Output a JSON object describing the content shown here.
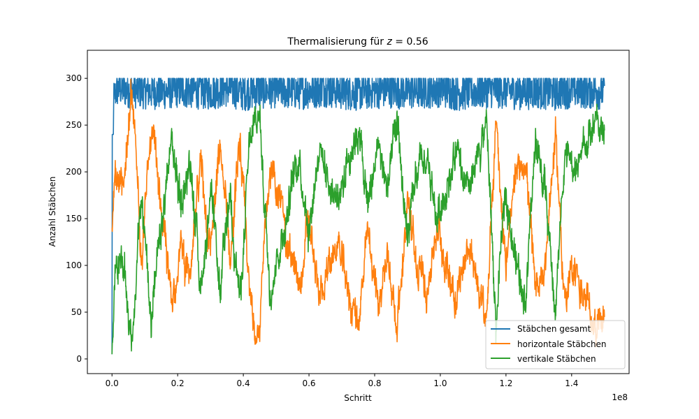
{
  "chart_data": {
    "type": "line",
    "title": "Thermalisierung für z = 0.56",
    "title_prefix": "Thermalisierung für ",
    "title_var": "z",
    "title_suffix": " = 0.56",
    "xlabel": "Schritt",
    "ylabel": "Anzahl Stäbchen",
    "x_offset_text": "1e8",
    "xlim": [
      -0.075,
      1.575
    ],
    "ylim": [
      -15.7,
      330
    ],
    "x_ticks": [
      0.0,
      0.2,
      0.4,
      0.6,
      0.8,
      1.0,
      1.2,
      1.4
    ],
    "x_tick_labels": [
      "0.0",
      "0.2",
      "0.4",
      "0.6",
      "0.8",
      "1.0",
      "1.2",
      "1.4"
    ],
    "y_ticks": [
      0,
      50,
      100,
      150,
      200,
      250,
      300
    ],
    "y_tick_labels": [
      "0",
      "50",
      "100",
      "150",
      "200",
      "250",
      "300"
    ],
    "grid": false,
    "legend_position": "lower right",
    "series": [
      {
        "name": "Stäbchen gesamt",
        "color": "#1f77b4",
        "x": [
          0.0,
          0.005,
          0.02,
          0.05,
          0.1,
          0.15,
          0.2,
          0.25,
          0.3,
          0.35,
          0.4,
          0.45,
          0.5,
          0.55,
          0.6,
          0.65,
          0.7,
          0.75,
          0.8,
          0.85,
          0.9,
          0.95,
          1.0,
          1.05,
          1.1,
          1.15,
          1.2,
          1.25,
          1.3,
          1.35,
          1.4,
          1.45,
          1.5
        ],
        "y": [
          0,
          280,
          290,
          288,
          287,
          286,
          289,
          288,
          287,
          290,
          286,
          288,
          289,
          287,
          288,
          290,
          287,
          286,
          288,
          289,
          287,
          288,
          290,
          286,
          287,
          289,
          288,
          287,
          288,
          286,
          289,
          288,
          287
        ],
        "band_low": [
          0,
          265,
          270,
          268,
          267,
          266,
          268,
          267,
          266,
          269,
          265,
          267,
          268,
          266,
          267,
          269,
          266,
          265,
          267,
          268,
          266,
          267,
          269,
          265,
          266,
          268,
          267,
          266,
          267,
          265,
          268,
          267,
          266
        ],
        "band_high": [
          0,
          298,
          308,
          307,
          306,
          305,
          309,
          308,
          307,
          310,
          306,
          308,
          309,
          307,
          308,
          312,
          307,
          306,
          308,
          309,
          307,
          308,
          312,
          306,
          307,
          309,
          308,
          307,
          308,
          306,
          310,
          308,
          307
        ]
      },
      {
        "name": "horizontale Stäbchen",
        "color": "#ff7f0e",
        "x": [
          0.0,
          0.01,
          0.03,
          0.06,
          0.09,
          0.12,
          0.15,
          0.18,
          0.21,
          0.24,
          0.27,
          0.3,
          0.33,
          0.36,
          0.39,
          0.42,
          0.45,
          0.48,
          0.51,
          0.54,
          0.57,
          0.6,
          0.63,
          0.66,
          0.69,
          0.72,
          0.75,
          0.78,
          0.81,
          0.84,
          0.87,
          0.9,
          0.93,
          0.96,
          0.99,
          1.02,
          1.05,
          1.08,
          1.11,
          1.14,
          1.17,
          1.2,
          1.23,
          1.26,
          1.29,
          1.32,
          1.35,
          1.38,
          1.41,
          1.44,
          1.47,
          1.5
        ],
        "y": [
          140,
          190,
          175,
          280,
          120,
          240,
          160,
          60,
          120,
          80,
          210,
          120,
          220,
          110,
          230,
          60,
          30,
          210,
          170,
          120,
          70,
          150,
          60,
          100,
          120,
          70,
          40,
          130,
          60,
          110,
          40,
          170,
          90,
          80,
          140,
          100,
          70,
          120,
          90,
          30,
          260,
          100,
          190,
          220,
          60,
          110,
          240,
          60,
          100,
          60,
          40,
          50
        ]
      },
      {
        "name": "vertikale Stäbchen",
        "color": "#2ca02c",
        "x": [
          0.0,
          0.01,
          0.03,
          0.06,
          0.09,
          0.12,
          0.15,
          0.18,
          0.21,
          0.24,
          0.27,
          0.3,
          0.33,
          0.36,
          0.39,
          0.42,
          0.45,
          0.48,
          0.51,
          0.54,
          0.57,
          0.6,
          0.63,
          0.66,
          0.69,
          0.72,
          0.75,
          0.78,
          0.81,
          0.84,
          0.87,
          0.9,
          0.93,
          0.96,
          0.99,
          1.02,
          1.05,
          1.08,
          1.11,
          1.14,
          1.17,
          1.2,
          1.23,
          1.26,
          1.29,
          1.32,
          1.35,
          1.38,
          1.41,
          1.44,
          1.47,
          1.5
        ],
        "y": [
          0,
          100,
          110,
          20,
          170,
          50,
          130,
          230,
          170,
          210,
          80,
          170,
          70,
          180,
          60,
          230,
          260,
          80,
          120,
          170,
          220,
          140,
          230,
          190,
          170,
          220,
          250,
          160,
          230,
          180,
          250,
          120,
          200,
          210,
          150,
          190,
          220,
          170,
          200,
          260,
          30,
          190,
          100,
          70,
          230,
          180,
          50,
          230,
          190,
          230,
          250,
          240
        ]
      }
    ]
  }
}
